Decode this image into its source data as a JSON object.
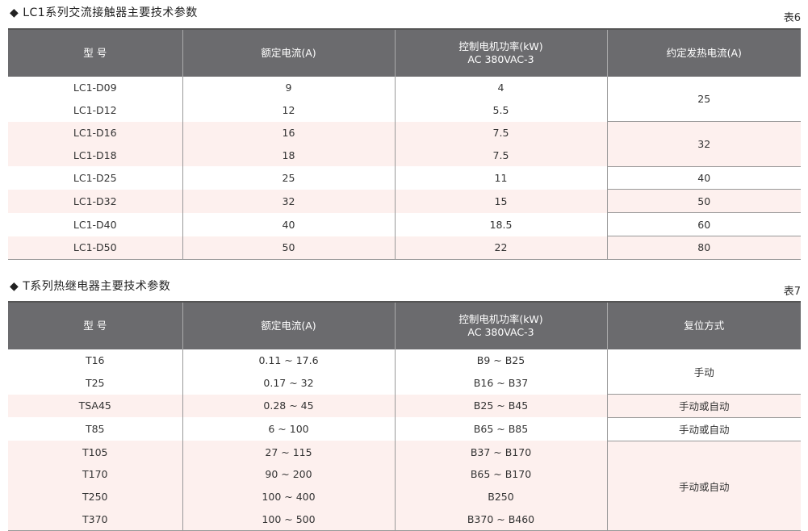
{
  "table6": {
    "title": "◆ LC1系列交流接触器主要技术参数",
    "number": "表6",
    "headers": [
      "型  号",
      "额定电流(A)",
      "控制电机功率(kW)",
      "AC 380VAC-3",
      "约定发热电流(A)"
    ],
    "rows": [
      [
        "LC1-D09",
        "9",
        "4"
      ],
      [
        "LC1-D12",
        "12",
        "5.5"
      ],
      [
        "LC1-D16",
        "16",
        "7.5"
      ],
      [
        "LC1-D18",
        "18",
        "7.5"
      ],
      [
        "LC1-D25",
        "25",
        "11"
      ],
      [
        "LC1-D32",
        "32",
        "15"
      ],
      [
        "LC1-D40",
        "40",
        "18.5"
      ],
      [
        "LC1-D50",
        "50",
        "22"
      ]
    ],
    "thermal": [
      "25",
      "32",
      "40",
      "50",
      "60",
      "80"
    ]
  },
  "table7": {
    "title": "◆ T系列热继电器主要技术参数",
    "number": "表7",
    "headers": [
      "型  号",
      "额定电流(A)",
      "控制电机功率(kW)",
      "AC 380VAC-3",
      "复位方式"
    ],
    "rows": [
      [
        "T16",
        "0.11 ~ 17.6",
        "B9 ~ B25"
      ],
      [
        "T25",
        "0.17 ~ 32",
        "B16 ~ B37"
      ],
      [
        "TSA45",
        "0.28 ~ 45",
        "B25 ~ B45"
      ],
      [
        "T85",
        "6 ~ 100",
        "B65 ~ B85"
      ],
      [
        "T105",
        "27 ~ 115",
        "B37 ~ B170"
      ],
      [
        "T170",
        "90 ~ 200",
        "B65 ~ B170"
      ],
      [
        "T250",
        "100 ~ 400",
        "B250"
      ],
      [
        "T370",
        "100 ~ 500",
        "B370 ~ B460"
      ]
    ],
    "reset": [
      "手动",
      "手动或自动",
      "手动或自动",
      "手动或自动"
    ]
  },
  "colors": {
    "header": "#6b6b6e",
    "row_tint": "#fdf0ee"
  }
}
